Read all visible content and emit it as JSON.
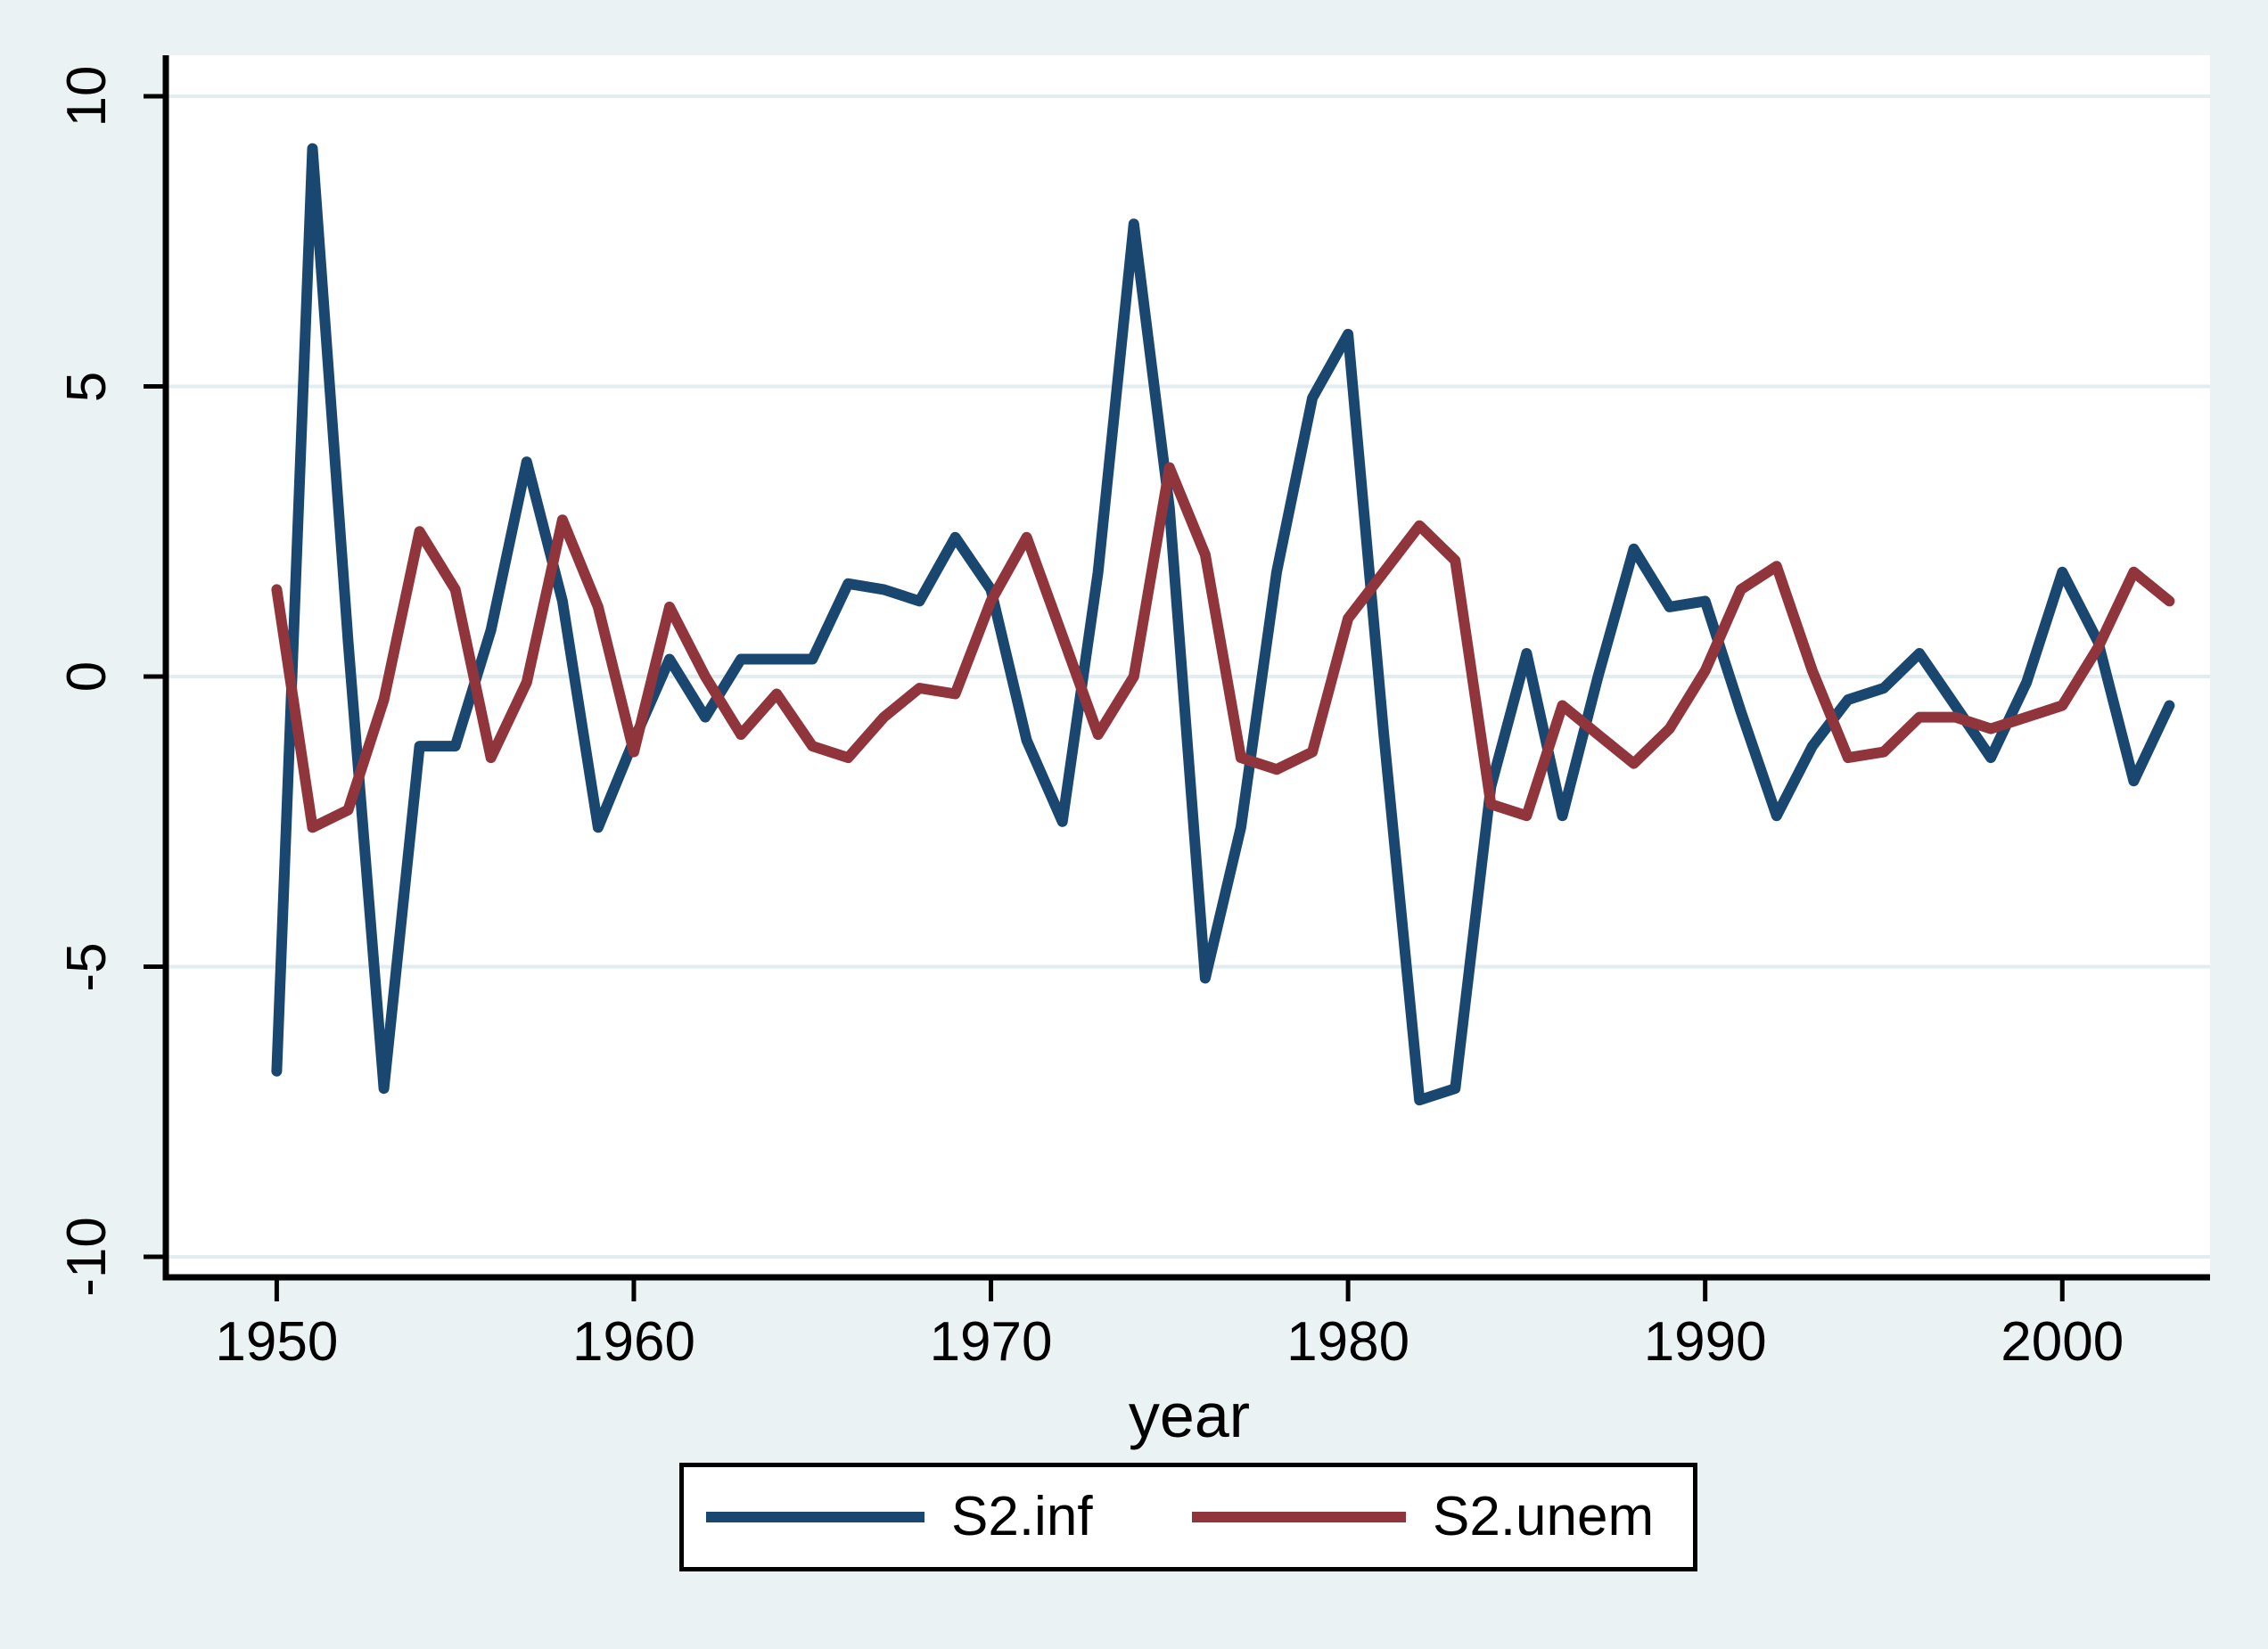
{
  "figure": {
    "background_color": "#eaf2f3",
    "plot_background_color": "#ffffff",
    "grid_color": "#e2edef",
    "axis_color": "#000000",
    "text_color": "#000000"
  },
  "axes": {
    "x": {
      "label": "year",
      "ticks": [
        "1950",
        "1960",
        "1970",
        "1980",
        "1990",
        "2000"
      ]
    },
    "y": {
      "ticks": [
        "10",
        "5",
        "0",
        "-5",
        "-10"
      ]
    }
  },
  "legend": {
    "items": [
      {
        "label": "S2.inf",
        "color": "#1a476f"
      },
      {
        "label": "S2.unem",
        "color": "#90353b"
      }
    ]
  },
  "chart_data": {
    "type": "line",
    "title": "",
    "xlabel": "year",
    "ylabel": "",
    "ylim": [
      -10,
      10
    ],
    "xlim_years": [
      1946.9,
      2004.1
    ],
    "yticks": [
      10,
      5,
      0,
      -5,
      -10
    ],
    "xticks": [
      1950,
      1960,
      1970,
      1980,
      1990,
      2000
    ],
    "grid": "horizontal",
    "legend_position": "bottom-center",
    "x": [
      1950,
      1951,
      1952,
      1953,
      1954,
      1955,
      1956,
      1957,
      1958,
      1959,
      1960,
      1961,
      1962,
      1963,
      1964,
      1965,
      1966,
      1967,
      1968,
      1969,
      1970,
      1971,
      1972,
      1973,
      1974,
      1975,
      1976,
      1977,
      1978,
      1979,
      1980,
      1981,
      1982,
      1983,
      1984,
      1985,
      1986,
      1987,
      1988,
      1989,
      1990,
      1991,
      1992,
      1993,
      1994,
      1995,
      1996,
      1997,
      1998,
      1999,
      2000,
      2001,
      2002,
      2003
    ],
    "series": [
      {
        "name": "S2.inf",
        "color": "#1a476f",
        "values": [
          -6.8,
          9.1,
          0.6,
          -7.1,
          -1.2,
          -1.2,
          0.8,
          3.7,
          1.3,
          -2.6,
          -1.1,
          0.3,
          -0.7,
          0.3,
          0.3,
          0.3,
          1.6,
          1.5,
          1.3,
          2.4,
          1.5,
          -1.1,
          -2.5,
          1.8,
          7.8,
          2.9,
          -5.2,
          -2.6,
          1.8,
          4.8,
          5.9,
          -1.0,
          -7.3,
          -7.1,
          -1.9,
          0.4,
          -2.4,
          0.0,
          2.2,
          1.2,
          1.3,
          -0.6,
          -2.4,
          -1.2,
          -0.4,
          -0.2,
          0.4,
          -0.5,
          -1.4,
          -0.1,
          1.8,
          0.6,
          -1.8,
          -0.5
        ]
      },
      {
        "name": "S2.unem",
        "color": "#90353b",
        "values": [
          1.5,
          -2.6,
          -2.3,
          -0.4,
          2.5,
          1.5,
          -1.4,
          -0.1,
          2.7,
          1.2,
          -1.3,
          1.2,
          0.0,
          -1.0,
          -0.3,
          -1.2,
          -1.4,
          -0.7,
          -0.2,
          -0.3,
          1.3,
          2.4,
          0.7,
          -1.0,
          0.0,
          3.6,
          2.1,
          -1.4,
          -1.6,
          -1.3,
          1.0,
          1.8,
          2.6,
          2.0,
          -2.2,
          -2.4,
          -0.5,
          -1.0,
          -1.5,
          -0.9,
          0.1,
          1.5,
          1.9,
          0.1,
          -1.4,
          -1.3,
          -0.7,
          -0.7,
          -0.9,
          -0.7,
          -0.5,
          0.5,
          1.8,
          1.3
        ]
      }
    ]
  }
}
